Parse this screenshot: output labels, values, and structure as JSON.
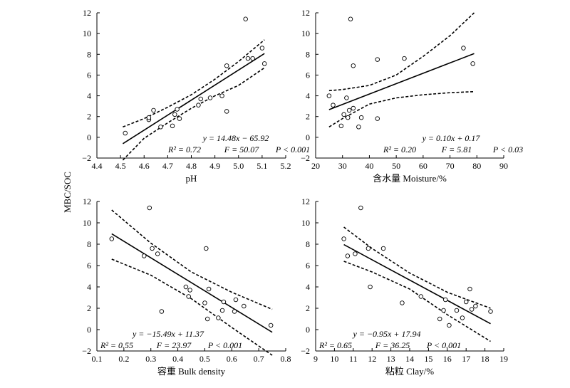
{
  "figure": {
    "ylabel": "MBC/SOC"
  },
  "chart_data": [
    {
      "type": "scatter",
      "xlabel": "pH",
      "xlim": [
        4.4,
        5.2
      ],
      "ylim": [
        -2,
        12
      ],
      "xticks": [
        "4.4",
        "4.5",
        "4.6",
        "4.7",
        "4.8",
        "4.9",
        "5.0",
        "5.1",
        "5.2"
      ],
      "yticks": [
        "−2",
        "0",
        "2",
        "4",
        "6",
        "8",
        "10",
        "12"
      ],
      "points": {
        "x": [
          4.52,
          4.62,
          4.62,
          4.64,
          4.67,
          4.72,
          4.73,
          4.74,
          4.75,
          4.83,
          4.84,
          4.88,
          4.93,
          4.95,
          4.95,
          5.03,
          5.04,
          5.06,
          5.1,
          5.11
        ],
        "y": [
          0.4,
          1.7,
          1.9,
          2.6,
          1.0,
          1.1,
          2.2,
          2.7,
          1.8,
          3.1,
          3.7,
          3.8,
          4.0,
          2.5,
          6.9,
          11.4,
          7.6,
          7.6,
          8.6,
          7.1
        ]
      },
      "fit": {
        "slope": 14.48,
        "intercept": -65.92,
        "x": [
          4.51,
          5.11
        ]
      },
      "ci_upper": {
        "x": [
          4.51,
          4.6,
          4.7,
          4.8,
          4.9,
          5.0,
          5.11
        ],
        "y": [
          1.0,
          1.8,
          2.9,
          4.1,
          5.6,
          7.3,
          9.4
        ]
      },
      "ci_lower": {
        "x": [
          4.51,
          4.6,
          4.7,
          4.8,
          4.9,
          5.0,
          5.11
        ],
        "y": [
          -2.2,
          -0.1,
          1.4,
          2.8,
          4.0,
          5.0,
          6.7
        ]
      },
      "equation": "y = 14.48x − 65.92",
      "stats": {
        "r2": "R² = 0.72",
        "f": "F = 50.07",
        "p": "P < 0.001"
      }
    },
    {
      "type": "scatter",
      "xlabel": "含水量 Moisture/%",
      "xlim": [
        20,
        90
      ],
      "ylim": [
        -2,
        12
      ],
      "xticks": [
        "20",
        "30",
        "40",
        "50",
        "60",
        "70",
        "80",
        "90"
      ],
      "yticks": [
        "−2",
        "0",
        "2",
        "4",
        "6",
        "8",
        "10",
        "12"
      ],
      "points": {
        "x": [
          25,
          26.5,
          29.5,
          30.5,
          31.5,
          32,
          32.5,
          33,
          34,
          34,
          36,
          37,
          43,
          43,
          53,
          75,
          78.5
        ],
        "y": [
          4.0,
          3.1,
          1.1,
          2.2,
          3.8,
          1.9,
          2.6,
          11.4,
          6.9,
          2.8,
          1.0,
          1.9,
          1.8,
          7.5,
          7.6,
          8.6,
          7.1
        ]
      },
      "fit": {
        "slope": 0.1,
        "intercept": 0.17,
        "x": [
          25,
          79
        ]
      },
      "ci_upper": {
        "x": [
          25,
          30,
          40,
          50,
          60,
          70,
          79
        ],
        "y": [
          4.5,
          4.6,
          5.0,
          6.0,
          7.8,
          9.8,
          12.0
        ]
      },
      "ci_lower": {
        "x": [
          25,
          30,
          40,
          50,
          60,
          70,
          79
        ],
        "y": [
          1.0,
          1.8,
          3.2,
          3.8,
          4.1,
          4.3,
          4.4
        ]
      },
      "equation": "y = 0.10x + 0.17",
      "stats": {
        "r2": "R² = 0.20",
        "f": "F = 5.81",
        "p": "P < 0.03"
      }
    },
    {
      "type": "scatter",
      "xlabel": "容重 Bulk density",
      "xlim": [
        0.1,
        0.8
      ],
      "ylim": [
        -2,
        12
      ],
      "xticks": [
        "0.1",
        "0.2",
        "0.3",
        "0.4",
        "0.5",
        "0.6",
        "0.7",
        "0.8"
      ],
      "yticks": [
        "−2",
        "0",
        "2",
        "4",
        "6",
        "8",
        "10",
        "12"
      ],
      "points": {
        "x": [
          0.155,
          0.275,
          0.295,
          0.305,
          0.325,
          0.34,
          0.43,
          0.44,
          0.445,
          0.5,
          0.505,
          0.51,
          0.515,
          0.55,
          0.565,
          0.57,
          0.61,
          0.615,
          0.645,
          0.745
        ],
        "y": [
          8.5,
          6.9,
          11.4,
          7.6,
          7.1,
          1.7,
          4.0,
          3.1,
          3.7,
          2.5,
          7.6,
          1.0,
          3.8,
          1.1,
          1.8,
          2.6,
          1.7,
          2.8,
          2.2,
          0.4
        ]
      },
      "fit": {
        "slope": -15.49,
        "intercept": 11.37,
        "x": [
          0.155,
          0.75
        ]
      },
      "ci_upper": {
        "x": [
          0.155,
          0.3,
          0.45,
          0.6,
          0.75
        ],
        "y": [
          11.2,
          8.1,
          5.4,
          3.5,
          1.9
        ]
      },
      "ci_lower": {
        "x": [
          0.155,
          0.3,
          0.45,
          0.6,
          0.75
        ],
        "y": [
          6.6,
          5.1,
          2.9,
          0.2,
          -2.4
        ]
      },
      "equation": "y = −15.49x + 11.37",
      "stats": {
        "r2": "R² = 0.55",
        "f": "F = 23.97",
        "p": "P < 0.001"
      }
    },
    {
      "type": "scatter",
      "xlabel": "粘粒 Clay/%",
      "xlim": [
        9,
        19
      ],
      "ylim": [
        -2,
        12
      ],
      "xticks": [
        "9",
        "10",
        "11",
        "12",
        "13",
        "14",
        "15",
        "16",
        "17",
        "18",
        "19"
      ],
      "yticks": [
        "−2",
        "0",
        "2",
        "4",
        "6",
        "8",
        "10",
        "12"
      ],
      "points": {
        "x": [
          10.5,
          10.7,
          11.1,
          11.4,
          11.8,
          11.9,
          12.6,
          13.6,
          14.6,
          15.6,
          15.8,
          15.9,
          16.1,
          16.5,
          16.8,
          17,
          17.2,
          17.3,
          17.5,
          18.3
        ],
        "y": [
          8.5,
          6.9,
          7.1,
          11.4,
          7.6,
          4.0,
          7.6,
          2.5,
          3.1,
          1.0,
          1.8,
          2.8,
          0.4,
          1.8,
          1.1,
          2.6,
          3.8,
          1.9,
          2.2,
          1.7
        ]
      },
      "fit": {
        "slope": -0.95,
        "intercept": 17.94,
        "x": [
          10.5,
          18.3
        ]
      },
      "ci_upper": {
        "x": [
          10.5,
          12,
          14,
          16,
          18.3
        ],
        "y": [
          9.6,
          7.6,
          5.3,
          3.5,
          2.0
        ]
      },
      "ci_lower": {
        "x": [
          10.5,
          12,
          14,
          16,
          18.3
        ],
        "y": [
          6.4,
          5.4,
          3.8,
          1.4,
          -1.1
        ]
      },
      "equation": "y = −0.95x + 17.94",
      "stats": {
        "r2": "R² = 0.65",
        "f": "F = 36.25",
        "p": "P < 0.001"
      }
    }
  ]
}
